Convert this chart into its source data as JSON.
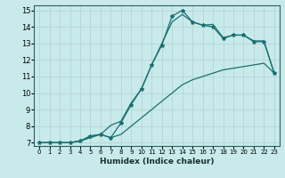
{
  "xlabel": "Humidex (Indice chaleur)",
  "bg_color": "#c8eaea",
  "grid_color": "#b8d8d8",
  "line_color": "#1a7070",
  "xlim": [
    -0.5,
    23.5
  ],
  "ylim": [
    6.8,
    15.3
  ],
  "xticks": [
    0,
    1,
    2,
    3,
    4,
    5,
    6,
    7,
    8,
    9,
    10,
    11,
    12,
    13,
    14,
    15,
    16,
    17,
    18,
    19,
    20,
    21,
    22,
    23
  ],
  "yticks": [
    7,
    8,
    9,
    10,
    11,
    12,
    13,
    14,
    15
  ],
  "curve1_x": [
    0,
    1,
    2,
    3,
    4,
    5,
    6,
    7,
    8,
    9,
    10,
    11,
    12,
    13,
    14,
    15,
    16,
    17,
    18,
    19,
    20,
    21,
    22,
    23
  ],
  "curve1_y": [
    7.0,
    7.0,
    7.0,
    7.0,
    7.1,
    7.4,
    7.5,
    7.3,
    8.2,
    9.3,
    10.25,
    11.7,
    12.9,
    14.65,
    15.0,
    14.3,
    14.1,
    14.0,
    13.3,
    13.5,
    13.5,
    13.1,
    13.1,
    11.2
  ],
  "curve2_x": [
    0,
    1,
    2,
    3,
    4,
    5,
    6,
    7,
    8,
    9,
    10,
    11,
    12,
    13,
    14,
    15,
    16,
    17,
    18,
    19,
    20,
    21,
    22,
    23
  ],
  "curve2_y": [
    7.0,
    7.0,
    7.0,
    7.0,
    7.1,
    7.4,
    7.5,
    8.05,
    8.3,
    9.4,
    10.25,
    11.7,
    13.0,
    14.3,
    14.75,
    14.3,
    14.1,
    14.15,
    13.35,
    13.5,
    13.5,
    13.15,
    13.15,
    11.2
  ],
  "curve3_x": [
    0,
    1,
    2,
    3,
    4,
    5,
    6,
    7,
    8,
    9,
    10,
    11,
    12,
    13,
    14,
    15,
    16,
    17,
    18,
    19,
    20,
    21,
    22,
    23
  ],
  "curve3_y": [
    7.0,
    7.0,
    7.0,
    7.0,
    7.1,
    7.3,
    7.5,
    7.3,
    7.5,
    8.0,
    8.5,
    9.0,
    9.5,
    10.0,
    10.5,
    10.8,
    11.0,
    11.2,
    11.4,
    11.5,
    11.6,
    11.7,
    11.8,
    11.2
  ]
}
